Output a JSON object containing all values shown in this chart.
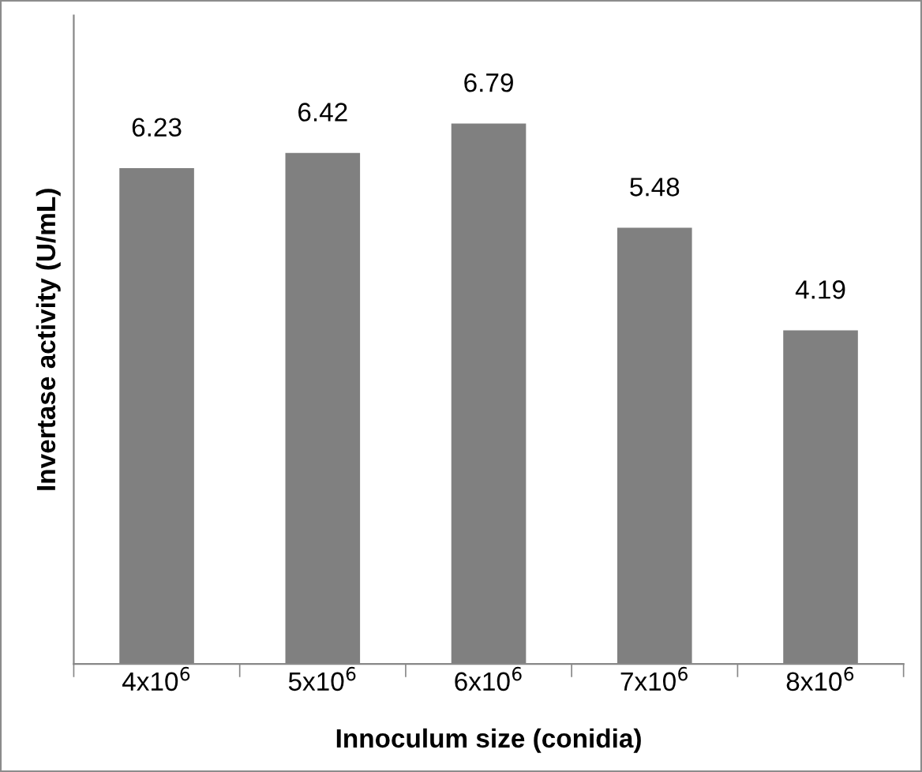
{
  "chart_data": {
    "type": "bar",
    "xlabel": "Innoculum size (conidia)",
    "ylabel": "Invertase activity (U/mL)",
    "categories": [
      "4x10$^{6}$",
      "5x10$^{6}$",
      "6x10$^{6}$",
      "7x10$^{6}$",
      "8x10$^{6}$"
    ],
    "values": [
      6.23,
      6.42,
      6.79,
      5.48,
      4.19
    ],
    "color": "#808080",
    "data_labels": true,
    "grid": false,
    "legend": false
  }
}
